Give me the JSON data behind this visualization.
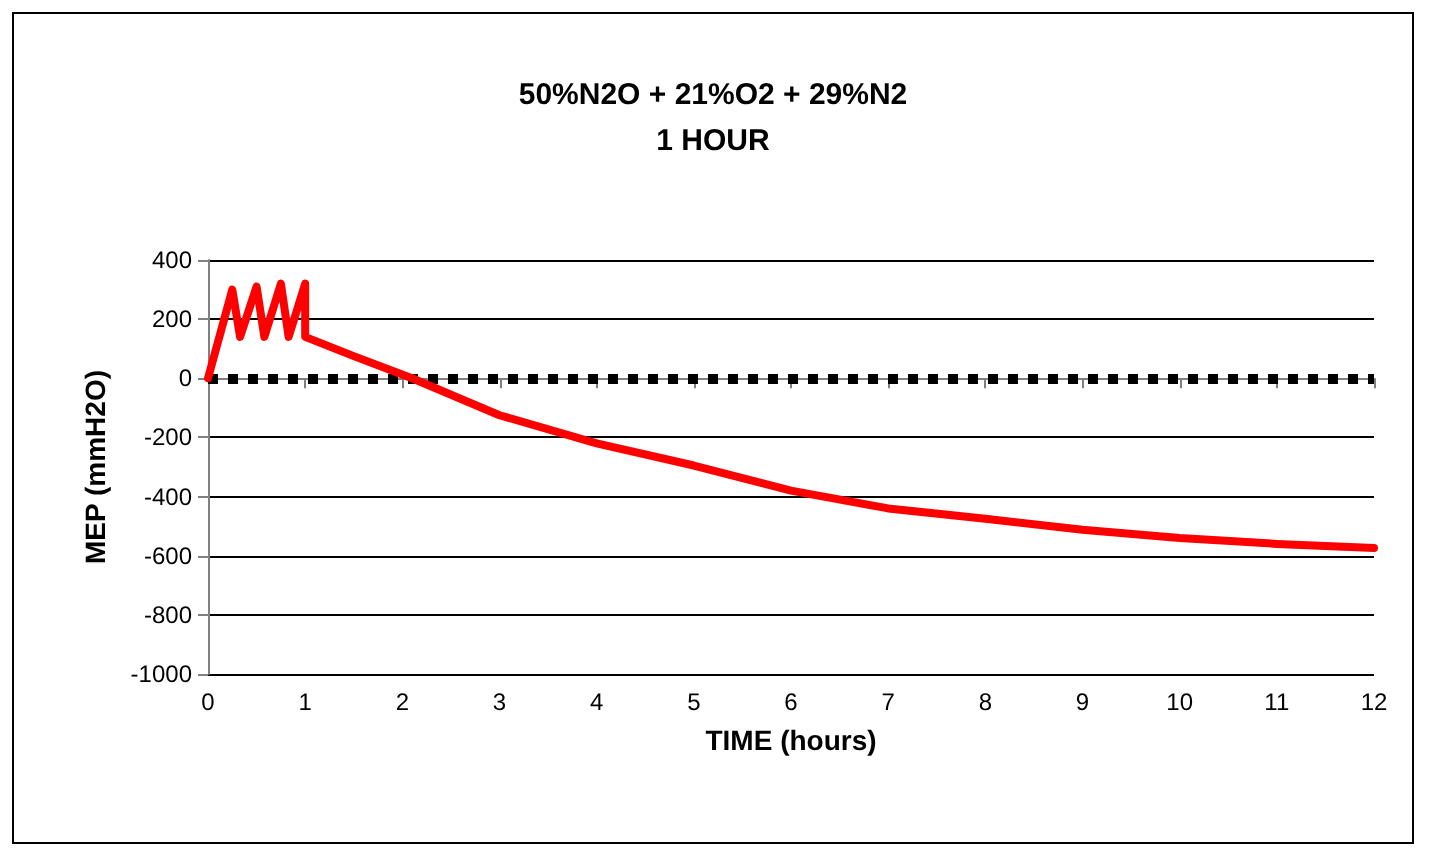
{
  "chart_data": {
    "type": "line",
    "title": "50%N2O + 21%O2 + 29%N2",
    "subtitle": "1 HOUR",
    "xlabel": "TIME (hours)",
    "ylabel": "MEP (mmH2O)",
    "series": [
      {
        "color": "#ff0000",
        "x": [
          0,
          0.25,
          0.33,
          0.5,
          0.58,
          0.75,
          0.83,
          1.0,
          1.0,
          1.5,
          2.1,
          3.0,
          4.0,
          5.0,
          6.0,
          7.0,
          8.0,
          9.0,
          10.0,
          11.0,
          12.0
        ],
        "values": [
          0,
          300,
          140,
          310,
          140,
          320,
          140,
          320,
          140,
          75,
          0,
          -125,
          -220,
          -295,
          -380,
          -440,
          -475,
          -512,
          -540,
          -560,
          -574
        ]
      }
    ],
    "xlim": [
      0,
      12
    ],
    "xticks": [
      0,
      1,
      2,
      3,
      4,
      5,
      6,
      7,
      8,
      9,
      10,
      11,
      12
    ],
    "ylim": [
      -1000,
      400
    ],
    "yticks": [
      -1000,
      -800,
      -600,
      -400,
      -200,
      0,
      200,
      400
    ],
    "grid": "y",
    "marker": "none",
    "line_style": "solid",
    "ref_lines": [
      {
        "axis": "y",
        "value": 0,
        "color": "#000000",
        "line_style": "dotted"
      }
    ]
  }
}
